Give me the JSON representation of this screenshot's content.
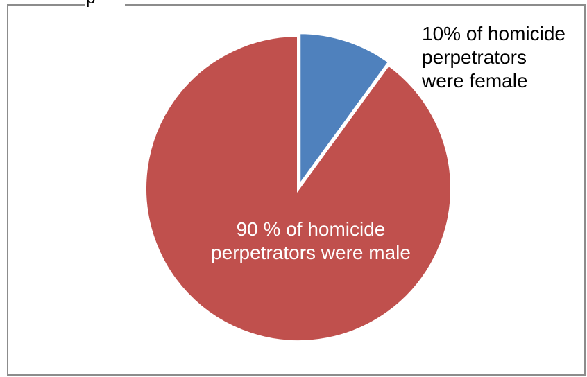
{
  "chart_data": {
    "type": "pie",
    "title_fragment": "p",
    "slices": [
      {
        "value": 10,
        "label_lines": [
          "10% of homicide",
          "perpetrators",
          "were female"
        ],
        "color": "#4f81bd",
        "exploded": true
      },
      {
        "value": 90,
        "label_lines": [
          "90 % of homicide",
          "perpetrators were male"
        ],
        "color": "#c0504d",
        "exploded": false
      }
    ],
    "start_angle_deg": 0,
    "direction": "clockwise",
    "slice_border_color": "#ffffff",
    "legend": "none"
  }
}
